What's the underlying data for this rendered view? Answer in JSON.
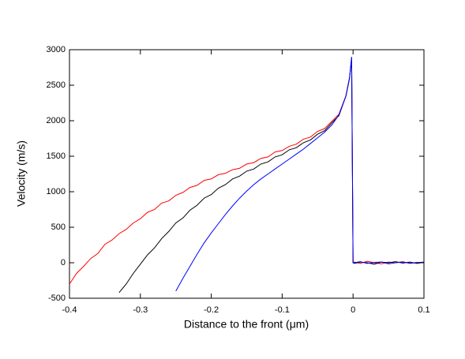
{
  "chart_data": {
    "type": "line",
    "x_label": "Distance to the front (μm)",
    "y_label": "Velocity (m/s)",
    "x": [
      -0.4,
      -0.39,
      -0.38,
      -0.37,
      -0.36,
      -0.35,
      -0.34,
      -0.33,
      -0.32,
      -0.31,
      -0.3,
      -0.29,
      -0.28,
      -0.27,
      -0.26,
      -0.25,
      -0.24,
      -0.23,
      -0.22,
      -0.21,
      -0.2,
      -0.19,
      -0.18,
      -0.17,
      -0.16,
      -0.15,
      -0.14,
      -0.13,
      -0.12,
      -0.11,
      -0.1,
      -0.09,
      -0.08,
      -0.07,
      -0.06,
      -0.05,
      -0.04,
      -0.03,
      -0.02,
      -0.01,
      -0.005,
      -0.002,
      0,
      0.002,
      0.01,
      0.02,
      0.03,
      0.04,
      0.05,
      0.06,
      0.07,
      0.08,
      0.09,
      0.1
    ],
    "series": [
      {
        "color": "#ff0000",
        "values": [
          -300,
          -150,
          -50,
          60,
          130,
          260,
          320,
          410,
          470,
          560,
          620,
          710,
          750,
          840,
          870,
          950,
          990,
          1060,
          1090,
          1160,
          1180,
          1240,
          1260,
          1310,
          1330,
          1390,
          1410,
          1470,
          1490,
          1560,
          1580,
          1640,
          1670,
          1740,
          1770,
          1850,
          1890,
          1990,
          2090,
          2350,
          2600,
          2880,
          0,
          10,
          -10,
          20,
          0,
          -15,
          10,
          0,
          15,
          -10,
          5,
          0
        ]
      },
      {
        "color": "#000000",
        "values": [
          null,
          null,
          null,
          null,
          null,
          null,
          null,
          -420,
          -300,
          -150,
          -20,
          110,
          210,
          340,
          440,
          560,
          630,
          740,
          810,
          910,
          960,
          1050,
          1100,
          1180,
          1220,
          1290,
          1320,
          1390,
          1420,
          1490,
          1520,
          1590,
          1620,
          1690,
          1730,
          1810,
          1860,
          1970,
          2070,
          2350,
          2600,
          2850,
          0,
          -10,
          10,
          0,
          -20,
          10,
          0,
          15,
          -5,
          10,
          -10,
          5
        ]
      },
      {
        "color": "#0000ff",
        "values": [
          null,
          null,
          null,
          null,
          null,
          null,
          null,
          null,
          null,
          null,
          null,
          null,
          null,
          null,
          null,
          -400,
          -220,
          -50,
          120,
          280,
          420,
          550,
          680,
          800,
          910,
          1010,
          1100,
          1180,
          1250,
          1320,
          1390,
          1460,
          1530,
          1600,
          1680,
          1760,
          1840,
          1940,
          2080,
          2350,
          2600,
          2900,
          0,
          0,
          15,
          -10,
          5,
          10,
          -15,
          0,
          10,
          -5,
          0,
          10
        ]
      }
    ],
    "xlim": [
      -0.4,
      0.1
    ],
    "xticks": [
      -0.4,
      -0.3,
      -0.2,
      -0.1,
      0.0,
      0.1
    ],
    "ylim": [
      -500,
      3000
    ],
    "yticks": [
      -500,
      0,
      500,
      1000,
      1500,
      2000,
      2500,
      3000
    ]
  }
}
